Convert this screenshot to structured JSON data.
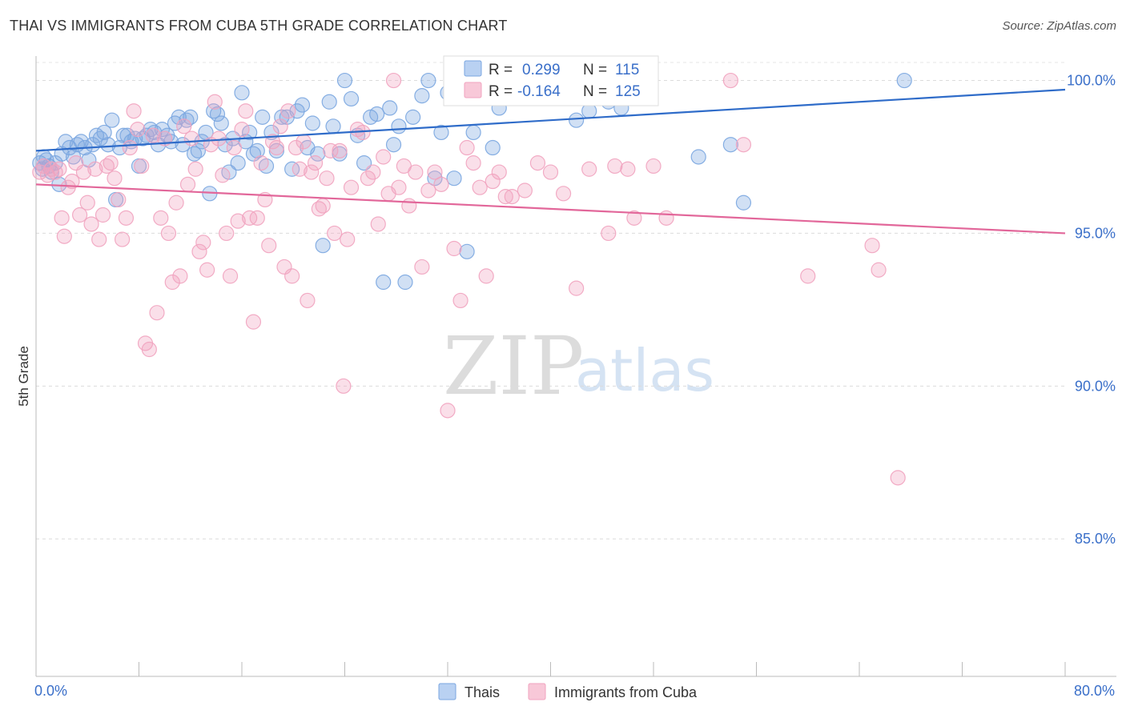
{
  "title": "THAI VS IMMIGRANTS FROM CUBA 5TH GRADE CORRELATION CHART",
  "source": "Source: ZipAtlas.com",
  "chart_data": {
    "type": "scatter",
    "title": "THAI VS IMMIGRANTS FROM CUBA 5TH GRADE CORRELATION CHART",
    "xlabel": "",
    "ylabel": "5th Grade",
    "xlim": [
      0,
      80
    ],
    "ylim": [
      80.5,
      100.8
    ],
    "x_tick_labels": [
      {
        "value": 0,
        "label": "0.0%"
      },
      {
        "value": 80,
        "label": "80.0%"
      }
    ],
    "y_tick_labels": [
      {
        "value": 100,
        "label": "100.0%"
      },
      {
        "value": 95,
        "label": "95.0%"
      },
      {
        "value": 90,
        "label": "90.0%"
      },
      {
        "value": 85,
        "label": "85.0%"
      }
    ],
    "grid": true,
    "legend_position": "bottom-center",
    "stats_box_position": "top-center",
    "series": [
      {
        "name": "Thais",
        "color": "#7aa6e0",
        "line_color": "#2f6cc9",
        "R": "0.299",
        "N": "115",
        "trend": {
          "x": [
            0,
            80
          ],
          "y": [
            97.7,
            99.7
          ]
        },
        "points": [
          [
            0.3,
            97.3
          ],
          [
            0.5,
            97.1
          ],
          [
            0.6,
            97.5
          ],
          [
            0.8,
            97.4
          ],
          [
            1.0,
            97.2
          ],
          [
            1.2,
            97.0
          ],
          [
            1.5,
            97.3
          ],
          [
            1.8,
            96.6
          ],
          [
            2.0,
            97.6
          ],
          [
            2.3,
            98.0
          ],
          [
            2.6,
            97.8
          ],
          [
            2.9,
            97.5
          ],
          [
            3.2,
            97.9
          ],
          [
            3.5,
            98.0
          ],
          [
            3.8,
            97.8
          ],
          [
            4.1,
            97.4
          ],
          [
            4.4,
            97.9
          ],
          [
            4.7,
            98.2
          ],
          [
            5.0,
            98.1
          ],
          [
            5.3,
            98.3
          ],
          [
            5.6,
            97.9
          ],
          [
            5.9,
            98.7
          ],
          [
            6.2,
            96.1
          ],
          [
            6.5,
            97.8
          ],
          [
            6.8,
            98.2
          ],
          [
            7.1,
            98.2
          ],
          [
            7.4,
            98.0
          ],
          [
            7.7,
            98.1
          ],
          [
            8.0,
            97.2
          ],
          [
            8.3,
            98.1
          ],
          [
            8.6,
            98.2
          ],
          [
            8.9,
            98.4
          ],
          [
            9.2,
            98.3
          ],
          [
            9.5,
            97.9
          ],
          [
            9.8,
            98.4
          ],
          [
            10.2,
            98.2
          ],
          [
            10.5,
            98.0
          ],
          [
            10.8,
            98.6
          ],
          [
            11.1,
            98.8
          ],
          [
            11.4,
            97.9
          ],
          [
            11.7,
            98.7
          ],
          [
            12.0,
            98.8
          ],
          [
            12.3,
            97.6
          ],
          [
            12.6,
            97.7
          ],
          [
            12.9,
            98.0
          ],
          [
            13.2,
            98.3
          ],
          [
            13.5,
            96.3
          ],
          [
            13.8,
            99.0
          ],
          [
            14.1,
            98.9
          ],
          [
            14.4,
            98.6
          ],
          [
            14.7,
            97.9
          ],
          [
            15.0,
            97.0
          ],
          [
            15.3,
            98.1
          ],
          [
            15.7,
            97.3
          ],
          [
            16.0,
            99.6
          ],
          [
            16.3,
            98.0
          ],
          [
            16.6,
            98.3
          ],
          [
            16.9,
            97.6
          ],
          [
            17.2,
            97.7
          ],
          [
            17.6,
            98.8
          ],
          [
            17.9,
            97.2
          ],
          [
            18.3,
            98.3
          ],
          [
            18.7,
            97.7
          ],
          [
            19.1,
            98.8
          ],
          [
            19.5,
            98.8
          ],
          [
            19.9,
            97.1
          ],
          [
            20.3,
            99.0
          ],
          [
            20.7,
            99.2
          ],
          [
            21.1,
            97.8
          ],
          [
            21.5,
            98.6
          ],
          [
            21.9,
            97.6
          ],
          [
            22.3,
            94.6
          ],
          [
            22.8,
            99.3
          ],
          [
            23.1,
            98.5
          ],
          [
            23.6,
            97.6
          ],
          [
            24.0,
            100.0
          ],
          [
            24.5,
            99.4
          ],
          [
            25.0,
            98.2
          ],
          [
            25.5,
            97.3
          ],
          [
            26.0,
            98.8
          ],
          [
            26.5,
            98.9
          ],
          [
            27.0,
            93.4
          ],
          [
            27.5,
            99.1
          ],
          [
            27.8,
            97.9
          ],
          [
            28.2,
            98.5
          ],
          [
            28.7,
            93.4
          ],
          [
            29.3,
            98.8
          ],
          [
            30.0,
            99.5
          ],
          [
            30.5,
            100.0
          ],
          [
            31.0,
            96.8
          ],
          [
            31.5,
            98.3
          ],
          [
            32.0,
            99.6
          ],
          [
            32.5,
            96.8
          ],
          [
            33.0,
            100.0
          ],
          [
            33.5,
            94.4
          ],
          [
            34.0,
            98.3
          ],
          [
            34.8,
            99.7
          ],
          [
            35.5,
            97.8
          ],
          [
            36.0,
            99.1
          ],
          [
            37.0,
            99.9
          ],
          [
            38.5,
            99.5
          ],
          [
            42.0,
            98.7
          ],
          [
            43.0,
            99.0
          ],
          [
            44.5,
            99.3
          ],
          [
            45.5,
            99.1
          ],
          [
            47.5,
            100.0
          ],
          [
            51.5,
            97.5
          ],
          [
            54.0,
            97.9
          ],
          [
            55.0,
            96.0
          ],
          [
            67.5,
            100.0
          ]
        ]
      },
      {
        "name": "Immigrants from Cuba",
        "color": "#f1a3bf",
        "line_color": "#e2679a",
        "R": "-0.164",
        "N": "125",
        "trend": {
          "x": [
            0,
            80
          ],
          "y": [
            96.6,
            95.0
          ]
        },
        "points": [
          [
            0.3,
            97.0
          ],
          [
            0.6,
            97.2
          ],
          [
            0.9,
            96.9
          ],
          [
            1.2,
            97.1
          ],
          [
            1.5,
            97.0
          ],
          [
            1.8,
            97.1
          ],
          [
            2.0,
            95.5
          ],
          [
            2.2,
            94.9
          ],
          [
            2.5,
            96.5
          ],
          [
            2.8,
            96.7
          ],
          [
            3.1,
            97.3
          ],
          [
            3.4,
            95.6
          ],
          [
            3.7,
            97.0
          ],
          [
            4.0,
            96.0
          ],
          [
            4.3,
            95.3
          ],
          [
            4.6,
            97.1
          ],
          [
            4.9,
            94.8
          ],
          [
            5.2,
            95.6
          ],
          [
            5.5,
            97.2
          ],
          [
            5.8,
            97.3
          ],
          [
            6.1,
            96.8
          ],
          [
            6.4,
            96.1
          ],
          [
            6.7,
            94.8
          ],
          [
            7.0,
            95.5
          ],
          [
            7.3,
            97.8
          ],
          [
            7.6,
            99.0
          ],
          [
            7.9,
            98.4
          ],
          [
            8.2,
            97.2
          ],
          [
            8.5,
            91.4
          ],
          [
            8.8,
            91.2
          ],
          [
            9.1,
            98.2
          ],
          [
            9.4,
            92.4
          ],
          [
            9.7,
            95.5
          ],
          [
            10.0,
            98.1
          ],
          [
            10.3,
            95.0
          ],
          [
            10.6,
            93.4
          ],
          [
            10.9,
            96.0
          ],
          [
            11.2,
            93.6
          ],
          [
            11.5,
            98.5
          ],
          [
            11.8,
            96.6
          ],
          [
            12.1,
            98.1
          ],
          [
            12.4,
            97.1
          ],
          [
            12.7,
            94.4
          ],
          [
            13.0,
            94.7
          ],
          [
            13.3,
            93.8
          ],
          [
            13.6,
            97.9
          ],
          [
            13.9,
            99.3
          ],
          [
            14.2,
            98.1
          ],
          [
            14.5,
            96.9
          ],
          [
            14.8,
            95.0
          ],
          [
            15.1,
            93.6
          ],
          [
            15.4,
            97.8
          ],
          [
            15.7,
            95.4
          ],
          [
            16.0,
            98.4
          ],
          [
            16.3,
            99.0
          ],
          [
            16.6,
            95.5
          ],
          [
            16.9,
            92.1
          ],
          [
            17.2,
            95.5
          ],
          [
            17.5,
            97.3
          ],
          [
            17.8,
            96.1
          ],
          [
            18.1,
            94.6
          ],
          [
            18.4,
            98.0
          ],
          [
            18.7,
            97.8
          ],
          [
            19.0,
            98.5
          ],
          [
            19.3,
            93.9
          ],
          [
            19.6,
            99.0
          ],
          [
            19.9,
            93.6
          ],
          [
            20.2,
            97.8
          ],
          [
            20.5,
            97.1
          ],
          [
            20.8,
            98.0
          ],
          [
            21.1,
            92.8
          ],
          [
            21.4,
            97.0
          ],
          [
            21.7,
            97.3
          ],
          [
            22.0,
            95.8
          ],
          [
            22.3,
            95.9
          ],
          [
            22.6,
            96.8
          ],
          [
            22.9,
            97.7
          ],
          [
            23.2,
            95.0
          ],
          [
            23.6,
            97.7
          ],
          [
            23.9,
            90.0
          ],
          [
            24.2,
            94.8
          ],
          [
            24.5,
            96.5
          ],
          [
            25.0,
            98.4
          ],
          [
            25.4,
            98.3
          ],
          [
            25.8,
            96.8
          ],
          [
            26.2,
            97.0
          ],
          [
            26.6,
            95.3
          ],
          [
            27.0,
            97.5
          ],
          [
            27.4,
            96.3
          ],
          [
            27.8,
            100.0
          ],
          [
            28.2,
            96.5
          ],
          [
            28.6,
            97.2
          ],
          [
            29.0,
            95.9
          ],
          [
            29.5,
            97.0
          ],
          [
            30.0,
            93.9
          ],
          [
            30.5,
            96.4
          ],
          [
            31.0,
            97.0
          ],
          [
            31.5,
            96.6
          ],
          [
            32.0,
            89.2
          ],
          [
            32.5,
            94.5
          ],
          [
            33.0,
            92.8
          ],
          [
            33.5,
            97.8
          ],
          [
            34.0,
            97.3
          ],
          [
            34.5,
            96.5
          ],
          [
            35.0,
            93.6
          ],
          [
            35.5,
            96.7
          ],
          [
            36.0,
            97.0
          ],
          [
            36.5,
            96.2
          ],
          [
            37.0,
            96.2
          ],
          [
            38.0,
            96.4
          ],
          [
            39.0,
            97.3
          ],
          [
            40.0,
            97.0
          ],
          [
            41.0,
            96.3
          ],
          [
            42.0,
            93.2
          ],
          [
            43.0,
            97.1
          ],
          [
            44.5,
            95.0
          ],
          [
            45.0,
            97.2
          ],
          [
            46.0,
            97.1
          ],
          [
            46.5,
            95.5
          ],
          [
            48.0,
            97.2
          ],
          [
            49.0,
            95.5
          ],
          [
            54.0,
            100.0
          ],
          [
            55.0,
            97.9
          ],
          [
            60.0,
            93.6
          ],
          [
            65.0,
            94.6
          ],
          [
            65.5,
            93.8
          ],
          [
            67.0,
            87.0
          ]
        ]
      }
    ]
  },
  "legend": [
    {
      "label": "Thais",
      "color": "#7aa6e0"
    },
    {
      "label": "Immigrants from Cuba",
      "color": "#f1a3bf"
    }
  ],
  "stats_box": {
    "r_label": "R =",
    "n_label": "N =",
    "rows": [
      {
        "r": "0.299",
        "n": "115",
        "color": "#7aa6e0"
      },
      {
        "r": "-0.164",
        "n": "125",
        "color": "#f1a3bf"
      }
    ]
  },
  "watermark": {
    "part1": "ZIP",
    "part2": "atlas"
  }
}
